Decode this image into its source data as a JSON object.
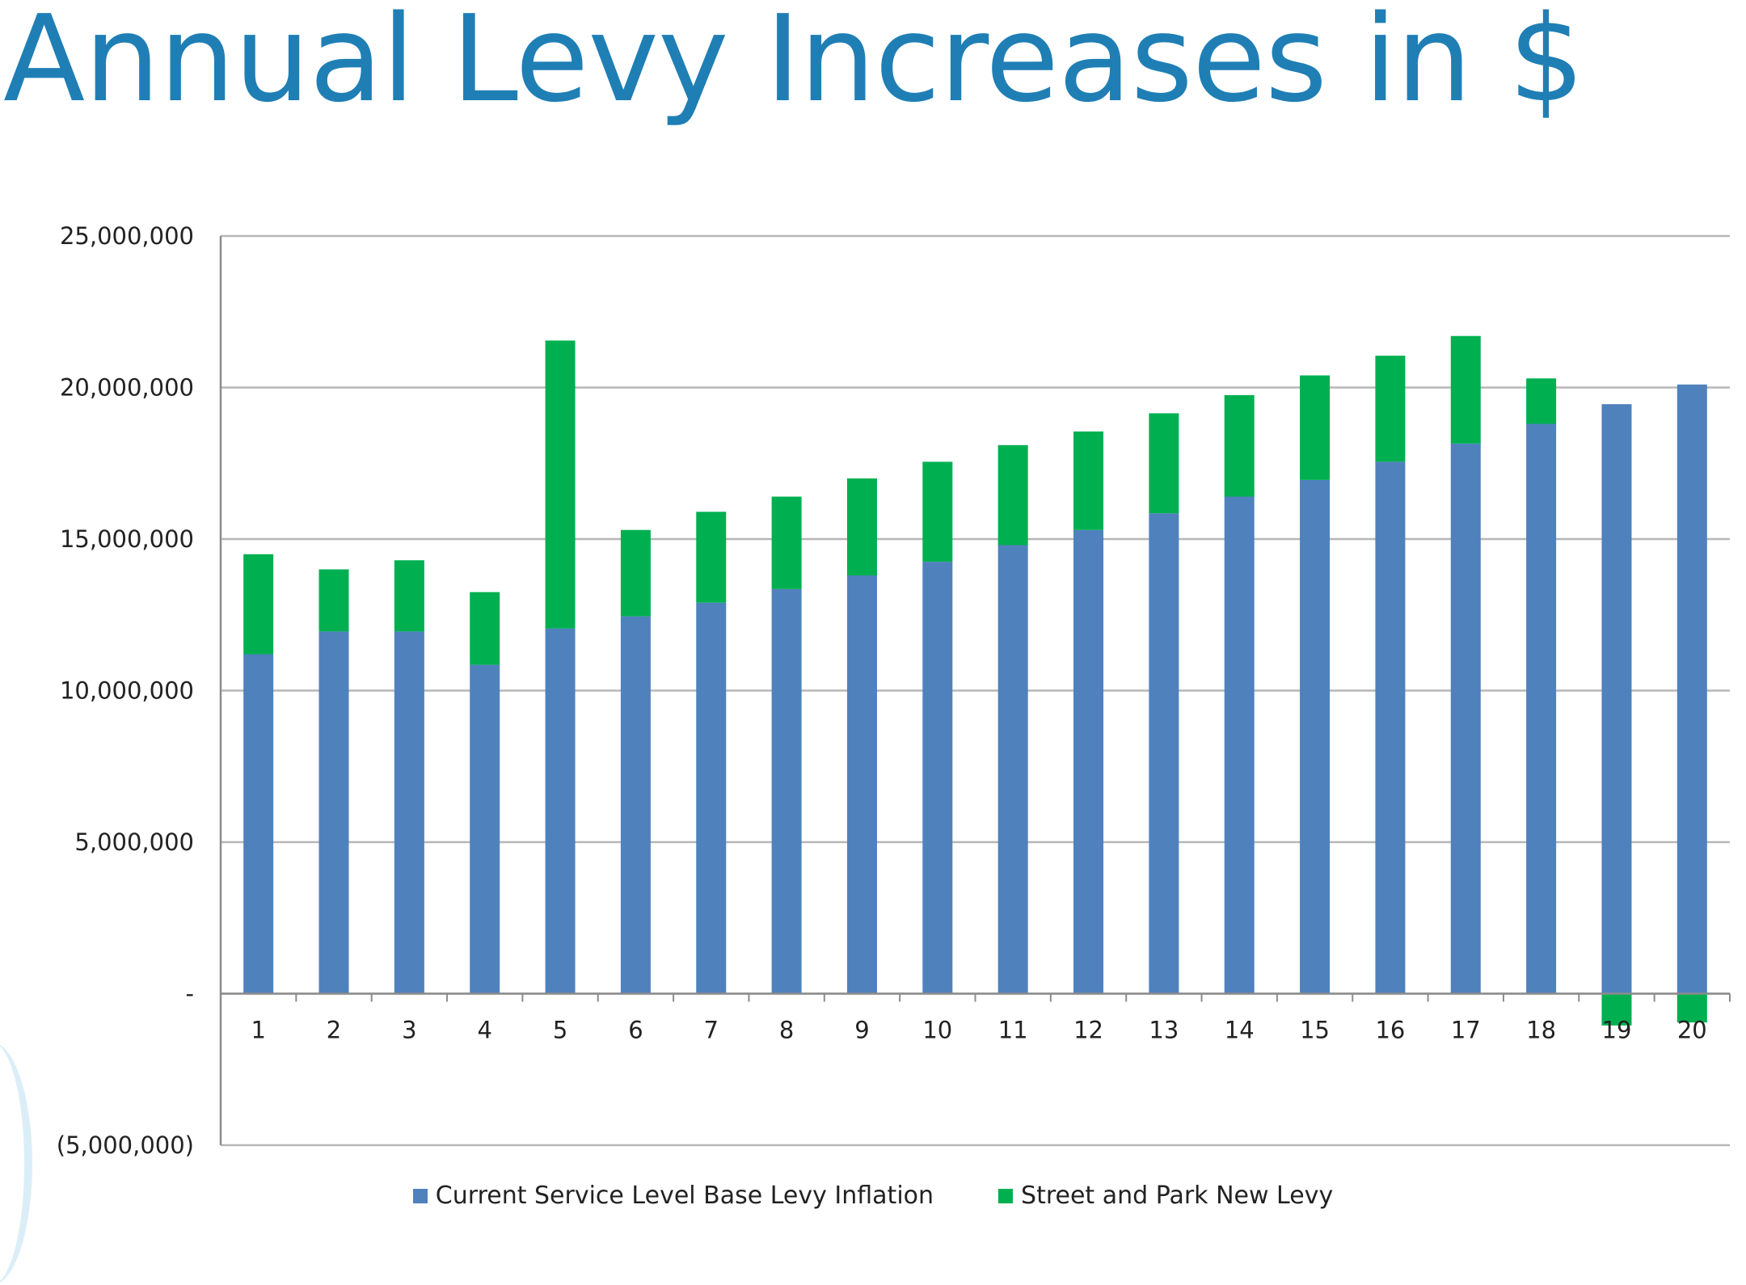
{
  "slide": {
    "title": "Annual Levy Increases in $"
  },
  "chart_data": {
    "type": "bar",
    "stacked": true,
    "title": "",
    "xlabel": "",
    "ylabel": "",
    "ylim": [
      -5000000,
      25000000
    ],
    "y_ticks": [
      25000000,
      20000000,
      15000000,
      10000000,
      5000000,
      0,
      -5000000
    ],
    "y_tick_labels": [
      "25,000,000",
      "20,000,000",
      "15,000,000",
      "10,000,000",
      "5,000,000",
      "-",
      "(5,000,000)"
    ],
    "categories": [
      "1",
      "2",
      "3",
      "4",
      "5",
      "6",
      "7",
      "8",
      "9",
      "10",
      "11",
      "12",
      "13",
      "14",
      "15",
      "16",
      "17",
      "18",
      "19",
      "20"
    ],
    "series": [
      {
        "name": "Current Service Level Base Levy Inflation",
        "color": "#4f81bd",
        "values": [
          11200000,
          11950000,
          11950000,
          10850000,
          12050000,
          12450000,
          12900000,
          13350000,
          13800000,
          14250000,
          14800000,
          15300000,
          15850000,
          16400000,
          16950000,
          17550000,
          18150000,
          18800000,
          19450000,
          20100000
        ]
      },
      {
        "name": "Street and Park New Levy",
        "color": "#00b050",
        "values": [
          3300000,
          2050000,
          2350000,
          2400000,
          9500000,
          2850000,
          3000000,
          3050000,
          3200000,
          3300000,
          3300000,
          3250000,
          3300000,
          3350000,
          3450000,
          3500000,
          3550000,
          1500000,
          -1050000,
          -950000
        ]
      }
    ],
    "grid": true,
    "legend_position": "bottom"
  }
}
